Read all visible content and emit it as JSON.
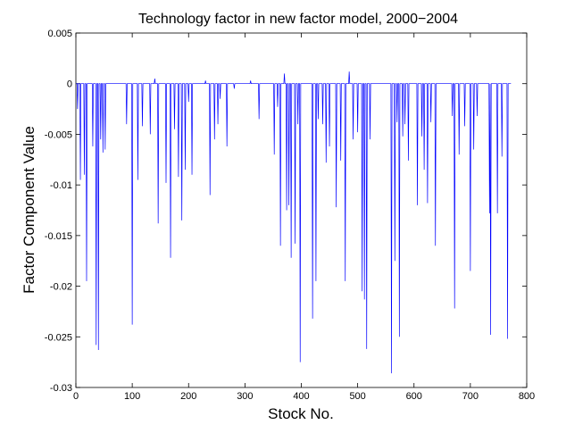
{
  "chart_data": {
    "type": "line",
    "title": "Technology factor in new factor model, 2000−2004",
    "xlabel": "Stock No.",
    "ylabel": "Factor Component Value",
    "xlim": [
      0,
      800
    ],
    "ylim": [
      -0.03,
      0.005
    ],
    "xticks": [
      "0",
      "100",
      "200",
      "300",
      "400",
      "500",
      "600",
      "700",
      "800"
    ],
    "yticks": [
      "0.005",
      "0",
      "-0.005",
      "-0.01",
      "-0.015",
      "-0.02",
      "-0.025",
      "-0.03"
    ],
    "grid": false,
    "legend": "none",
    "line_color": "#0000ff",
    "series": [
      {
        "spikes": [
          [
            3,
            -0.0025
          ],
          [
            8,
            -0.0095
          ],
          [
            15,
            -0.009
          ],
          [
            19,
            -0.0195
          ],
          [
            30,
            -0.0062
          ],
          [
            36,
            -0.0258
          ],
          [
            40,
            -0.0263
          ],
          [
            44,
            -0.0055
          ],
          [
            48,
            -0.0068
          ],
          [
            52,
            -0.0065
          ],
          [
            90,
            -0.004
          ],
          [
            100,
            -0.0238
          ],
          [
            110,
            -0.0095
          ],
          [
            118,
            -0.0042
          ],
          [
            132,
            -0.005
          ],
          [
            140,
            0.0005
          ],
          [
            146,
            -0.0138
          ],
          [
            160,
            -0.0098
          ],
          [
            168,
            -0.0172
          ],
          [
            175,
            -0.0045
          ],
          [
            182,
            -0.0092
          ],
          [
            188,
            -0.0135
          ],
          [
            194,
            -0.0085
          ],
          [
            200,
            -0.0018
          ],
          [
            206,
            -0.009
          ],
          [
            230,
            0.0003
          ],
          [
            238,
            -0.011
          ],
          [
            246,
            -0.0055
          ],
          [
            252,
            -0.004
          ],
          [
            256,
            -0.0015
          ],
          [
            268,
            -0.0062
          ],
          [
            281,
            -0.0005
          ],
          [
            310,
            0.0003
          ],
          [
            325,
            -0.0035
          ],
          [
            352,
            -0.007
          ],
          [
            358,
            -0.0023
          ],
          [
            363,
            -0.016
          ],
          [
            370,
            0.001
          ],
          [
            374,
            -0.0125
          ],
          [
            378,
            -0.012
          ],
          [
            382,
            -0.0172
          ],
          [
            389,
            -0.0158
          ],
          [
            394,
            -0.004
          ],
          [
            398,
            -0.0275
          ],
          [
            420,
            -0.0232
          ],
          [
            426,
            -0.0195
          ],
          [
            430,
            -0.0035
          ],
          [
            438,
            -0.004
          ],
          [
            444,
            -0.0078
          ],
          [
            450,
            -0.0062
          ],
          [
            462,
            -0.0122
          ],
          [
            470,
            -0.0076
          ],
          [
            478,
            -0.0195
          ],
          [
            485,
            0.0012
          ],
          [
            492,
            -0.0055
          ],
          [
            500,
            -0.0048
          ],
          [
            508,
            -0.0205
          ],
          [
            512,
            -0.0213
          ],
          [
            516,
            -0.0262
          ],
          [
            522,
            -0.0055
          ],
          [
            560,
            -0.0286
          ],
          [
            566,
            -0.0175
          ],
          [
            570,
            -0.0038
          ],
          [
            574,
            -0.025
          ],
          [
            580,
            -0.0052
          ],
          [
            584,
            -0.004
          ],
          [
            590,
            -0.0076
          ],
          [
            606,
            -0.012
          ],
          [
            614,
            -0.0052
          ],
          [
            618,
            -0.0085
          ],
          [
            624,
            -0.0118
          ],
          [
            630,
            -0.0038
          ],
          [
            638,
            -0.016
          ],
          [
            668,
            -0.0032
          ],
          [
            672,
            -0.0222
          ],
          [
            680,
            -0.007
          ],
          [
            690,
            -0.0042
          ],
          [
            700,
            -0.0185
          ],
          [
            706,
            -0.0065
          ],
          [
            712,
            -0.0032
          ],
          [
            734,
            -0.0128
          ],
          [
            736,
            -0.0248
          ],
          [
            748,
            -0.0128
          ],
          [
            756,
            -0.0072
          ],
          [
            766,
            -0.0252
          ]
        ]
      }
    ]
  }
}
